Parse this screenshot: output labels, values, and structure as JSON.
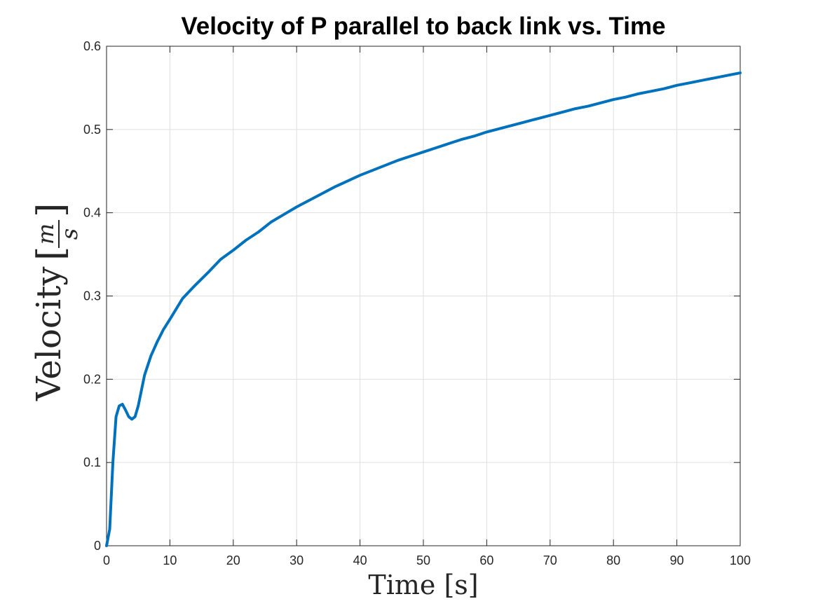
{
  "chart_data": {
    "type": "line",
    "title": "Velocity of P parallel to back link vs. Time",
    "xlabel": "Time [s]",
    "ylabel": {
      "text": "Velocity",
      "unit_numerator": "m",
      "unit_denominator": "s"
    },
    "xlim": [
      0,
      100
    ],
    "ylim": [
      0,
      0.6
    ],
    "xticks": [
      "0",
      "10",
      "20",
      "30",
      "40",
      "50",
      "60",
      "70",
      "80",
      "90",
      "100"
    ],
    "yticks": [
      "0",
      "0.1",
      "0.2",
      "0.3",
      "0.4",
      "0.5",
      "0.6"
    ],
    "grid": true,
    "line_color": "#0072BD",
    "series": [
      {
        "x": [
          0,
          0.5,
          1,
          1.5,
          2,
          2.5,
          3,
          3.5,
          4,
          4.5,
          5,
          6,
          7,
          8,
          9,
          10,
          12,
          14,
          16,
          18,
          20,
          22,
          24,
          26,
          28,
          30,
          32,
          34,
          36,
          38,
          40,
          42,
          44,
          46,
          48,
          50,
          52,
          54,
          56,
          58,
          60,
          62,
          64,
          66,
          68,
          70,
          72,
          74,
          76,
          78,
          80,
          82,
          84,
          86,
          88,
          90,
          92,
          94,
          96,
          98,
          100
        ],
        "y": [
          0,
          0.02,
          0.1,
          0.155,
          0.168,
          0.17,
          0.163,
          0.155,
          0.152,
          0.155,
          0.168,
          0.205,
          0.228,
          0.245,
          0.26,
          0.272,
          0.297,
          0.313,
          0.328,
          0.344,
          0.355,
          0.367,
          0.377,
          0.389,
          0.398,
          0.407,
          0.415,
          0.423,
          0.431,
          0.438,
          0.445,
          0.451,
          0.457,
          0.463,
          0.468,
          0.473,
          0.478,
          0.483,
          0.488,
          0.492,
          0.497,
          0.501,
          0.505,
          0.509,
          0.513,
          0.517,
          0.521,
          0.525,
          0.528,
          0.532,
          0.536,
          0.539,
          0.543,
          0.546,
          0.549,
          0.553,
          0.556,
          0.559,
          0.562,
          0.565,
          0.568
        ]
      }
    ]
  }
}
